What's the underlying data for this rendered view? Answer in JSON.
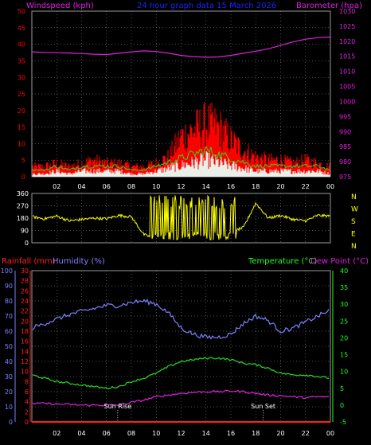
{
  "header": {
    "windspeed_label": "Windspeed (kph)",
    "title": "24 hour graph data   15 March 2026",
    "barometer_label": "Barometer (hpa)"
  },
  "colors": {
    "background": "#000000",
    "grid": "#9a9a9a",
    "gust": "#ff0000",
    "wind_avg": "#22dd22",
    "wind_area": "#e8f0e8",
    "barometer": "#e020e0",
    "direction": "#ffff00",
    "humidity": "#8080ff",
    "temperature": "#22dd22",
    "dewpoint": "#e020e0",
    "rainfall": "#ff2020",
    "title": "#2020ff",
    "axis_white": "#ffffff",
    "temp_axis": "#22ff22"
  },
  "chart_data": [
    {
      "type": "area",
      "id": "wind_baro",
      "title": "24 hour graph data   15 March 2026",
      "x_ticks": [
        "02",
        "04",
        "06",
        "08",
        "10",
        "12",
        "14",
        "16",
        "18",
        "20",
        "22",
        "00"
      ],
      "left_axis": {
        "label": "Windspeed (kph)",
        "ticks": [
          0,
          5,
          10,
          15,
          20,
          25,
          30,
          35,
          40,
          45,
          50
        ],
        "range": [
          0,
          50
        ]
      },
      "right_axis": {
        "label": "Barometer (hpa)",
        "ticks": [
          975,
          980,
          985,
          990,
          995,
          1000,
          1005,
          1010,
          1015,
          1020,
          1025,
          1030
        ],
        "range": [
          975,
          1030
        ]
      },
      "x_hours": [
        0,
        1,
        2,
        3,
        4,
        5,
        6,
        7,
        8,
        9,
        10,
        11,
        12,
        13,
        14,
        15,
        16,
        17,
        18,
        19,
        20,
        21,
        22,
        23,
        24
      ],
      "series": [
        {
          "key": "gust",
          "values": [
            3,
            3,
            4,
            3,
            4,
            5,
            4,
            4,
            3,
            3,
            4,
            6,
            12,
            14,
            16,
            15,
            11,
            8,
            6,
            5,
            5,
            4,
            5,
            4,
            3
          ]
        },
        {
          "key": "wind_avg",
          "values": [
            1,
            1,
            2,
            1,
            2,
            2,
            2,
            2,
            1,
            1,
            2,
            3,
            4,
            5,
            6,
            5,
            4,
            3,
            2,
            2,
            2,
            2,
            2,
            2,
            1
          ]
        },
        {
          "key": "barometer",
          "values": [
            1016.5,
            1016.3,
            1016.2,
            1016.1,
            1015.9,
            1015.7,
            1015.6,
            1016.0,
            1016.5,
            1016.8,
            1016.6,
            1016.0,
            1015.3,
            1014.9,
            1014.7,
            1014.8,
            1015.3,
            1016.0,
            1016.7,
            1017.5,
            1018.6,
            1019.8,
            1020.7,
            1021.2,
            1021.4
          ]
        }
      ]
    },
    {
      "type": "line",
      "id": "direction",
      "left_axis": {
        "ticks": [
          0,
          90,
          180,
          270,
          360
        ],
        "range": [
          0,
          360
        ]
      },
      "compass": [
        "N",
        "W",
        "S",
        "E",
        "N"
      ],
      "x_hours": [
        0,
        1,
        2,
        3,
        4,
        5,
        6,
        7,
        8,
        9,
        10,
        11,
        12,
        13,
        14,
        15,
        16,
        17,
        18,
        19,
        20,
        21,
        22,
        23,
        24
      ],
      "series": [
        {
          "key": "direction",
          "values": [
            190,
            175,
            195,
            160,
            170,
            180,
            175,
            200,
            190,
            60,
            30,
            130,
            120,
            110,
            140,
            90,
            80,
            110,
            290,
            180,
            200,
            170,
            160,
            200,
            195
          ]
        }
      ]
    },
    {
      "type": "line",
      "id": "temp_hum",
      "rainfall_label": "Rainfall (mm)",
      "humidity_label": "Humidity (%)",
      "temperature_label": "Temperature (°C)",
      "dewpoint_label": "Dew Point (°C)",
      "rain_axis": {
        "ticks": [
          0,
          2,
          4,
          6,
          8,
          10,
          12,
          14,
          16,
          18,
          20,
          22,
          24,
          26,
          28,
          30
        ],
        "range": [
          0,
          30
        ]
      },
      "humidity_axis": {
        "ticks": [
          0,
          10,
          20,
          30,
          40,
          50,
          60,
          70,
          80,
          90,
          100
        ],
        "range": [
          0,
          100
        ]
      },
      "temp_axis": {
        "ticks": [
          -5,
          0,
          5,
          10,
          15,
          20,
          25,
          30,
          35,
          40
        ],
        "range": [
          -5,
          40
        ]
      },
      "x_ticks": [
        "02",
        "04",
        "06",
        "08",
        "10",
        "12",
        "14",
        "16",
        "18",
        "20",
        "22",
        "00"
      ],
      "x_hours": [
        0,
        1,
        2,
        3,
        4,
        5,
        6,
        7,
        8,
        9,
        10,
        11,
        12,
        13,
        14,
        15,
        16,
        17,
        18,
        19,
        20,
        21,
        22,
        23,
        24
      ],
      "series": [
        {
          "key": "humidity",
          "values": [
            62,
            65,
            68,
            71,
            73,
            75,
            77,
            77,
            79,
            80,
            78,
            72,
            62,
            58,
            56,
            56,
            58,
            65,
            70,
            67,
            60,
            62,
            66,
            70,
            74
          ]
        },
        {
          "key": "temperature",
          "values": [
            9,
            8,
            7,
            6.5,
            6,
            5.5,
            5,
            5.5,
            7,
            8,
            9.5,
            11.5,
            13,
            13.5,
            14,
            14,
            13.5,
            12.5,
            12,
            11,
            9.5,
            9,
            9,
            8.5,
            8
          ]
        },
        {
          "key": "dewpoint",
          "values": [
            0.5,
            0.5,
            0.3,
            0.2,
            0,
            0,
            0,
            0,
            0.8,
            1.5,
            2.5,
            3,
            3.5,
            3.8,
            4,
            4,
            4.2,
            4,
            3.5,
            3,
            2.8,
            2.5,
            2.2,
            2.5,
            2.4
          ]
        },
        {
          "key": "rainfall",
          "values": [
            0,
            0,
            0,
            0,
            0,
            0,
            0,
            0,
            0,
            0,
            0,
            0,
            0,
            0,
            0,
            0,
            0,
            0,
            0,
            0,
            0,
            0,
            0,
            0,
            0
          ]
        }
      ],
      "annotations": [
        {
          "label": "Sun Rise",
          "hour": 6.9
        },
        {
          "label": "Sun Set",
          "hour": 18.6
        }
      ]
    }
  ]
}
